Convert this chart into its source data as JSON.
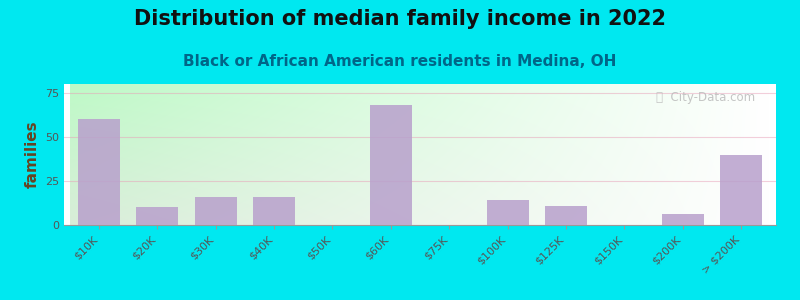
{
  "title": "Distribution of median family income in 2022",
  "subtitle": "Black or African American residents in Medina, OH",
  "ylabel": "families",
  "categories": [
    "$10K",
    "$20K",
    "$30K",
    "$40K",
    "$50K",
    "$60K",
    "$75K",
    "$100K",
    "$125K",
    "$150K",
    "$200K",
    "> $200K"
  ],
  "values": [
    60,
    10,
    16,
    16,
    0,
    68,
    0,
    14,
    11,
    0,
    6,
    40
  ],
  "bar_color": "#b8a0cc",
  "bar_alpha": 0.85,
  "background_color": "#00e8f0",
  "plot_bg_left_top": "#d8eeda",
  "plot_bg_right_bottom": "#f8f8f0",
  "grid_color": "#e8a0b8",
  "grid_alpha": 0.5,
  "title_fontsize": 15,
  "subtitle_fontsize": 11,
  "ylabel_fontsize": 11,
  "tick_fontsize": 8,
  "ylim": [
    0,
    80
  ],
  "yticks": [
    0,
    25,
    50,
    75
  ],
  "title_color": "#111111",
  "subtitle_color": "#006688",
  "ylabel_color": "#664422",
  "tick_color": "#555555",
  "watermark_text": "ⓘ  City-Data.com",
  "watermark_color": "#bbbbbb"
}
